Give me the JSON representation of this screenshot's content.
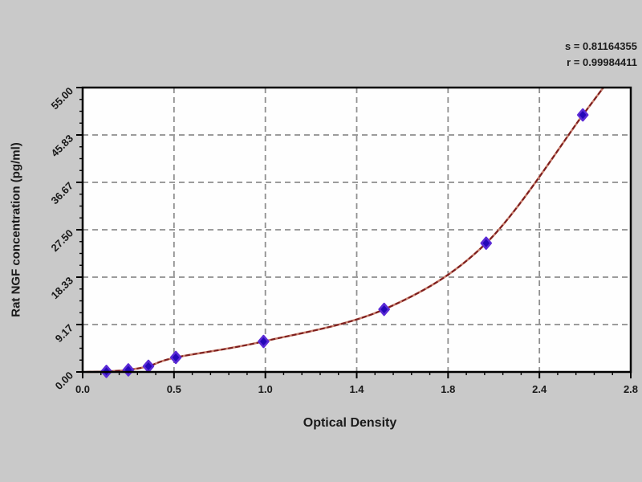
{
  "annotation": {
    "line1": "s = 0.81164355",
    "line2": "r = 0.99984411"
  },
  "chart_data": {
    "type": "scatter",
    "title": "",
    "xlabel": "Optical Density",
    "ylabel": "Rat NGF concentration (pg/ml)",
    "x_tick_labels": [
      "0.0",
      "0.5",
      "1.0",
      "1.4",
      "1.8",
      "2.4",
      "2.8"
    ],
    "x_tick_values": [
      0.0,
      0.5,
      1.0,
      1.4,
      1.8,
      2.4,
      2.8
    ],
    "y_tick_labels": [
      "0.00",
      "9.17",
      "18.33",
      "27.50",
      "36.67",
      "45.83",
      "55.00"
    ],
    "y_tick_values": [
      0.0,
      9.17,
      18.33,
      27.5,
      36.67,
      45.83,
      55.0
    ],
    "xlim": [
      0.0,
      2.8
    ],
    "ylim": [
      0.0,
      55.0
    ],
    "grid": "dashed",
    "legend": "none",
    "points": [
      {
        "od": 0.13,
        "conc": 0.1
      },
      {
        "od": 0.25,
        "conc": 0.4
      },
      {
        "od": 0.36,
        "conc": 1.1
      },
      {
        "od": 0.51,
        "conc": 2.8
      },
      {
        "od": 0.99,
        "conc": 5.9
      },
      {
        "od": 1.52,
        "conc": 12.1
      },
      {
        "od": 2.05,
        "conc": 24.9
      },
      {
        "od": 2.59,
        "conc": 49.7
      }
    ],
    "curve": {
      "fit": "exponential",
      "start_od": 0.02,
      "start_conc": 0.0,
      "end_od": 2.68,
      "end_conc": 55.0
    },
    "colors": {
      "background": "#c9c9c9",
      "plot_bg": "#fefefe",
      "curve_dark": "#7b1d1d",
      "curve_light": "#c97f6e",
      "marker_fill": "#2408b8",
      "marker_edge": "#5b2bd6",
      "grid": "#8f8f8f",
      "axis": "#000000"
    }
  }
}
